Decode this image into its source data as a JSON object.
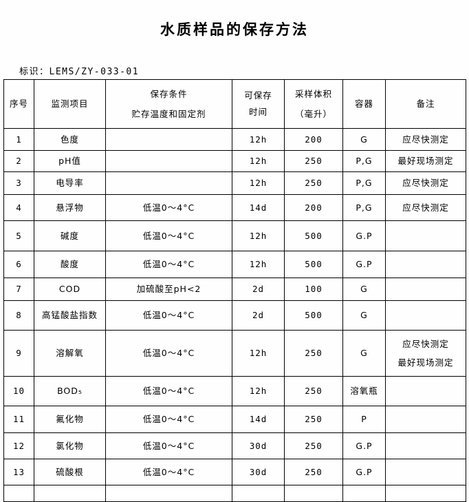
{
  "title": "水质样品的保存方法",
  "doc_id": "标识：LEMS/ZY-033-01",
  "table": {
    "headers": {
      "no": "序号",
      "item": "监测项目",
      "condition_line1": "保存条件",
      "condition_line2": "贮存温度和固定剂",
      "time": "可保存时间",
      "volume_line1": "采样体积",
      "volume_line2": "（毫升）",
      "container": "容器",
      "remark": "备注"
    },
    "rows": [
      {
        "no": "1",
        "item": "色度",
        "condition": "",
        "time": "12h",
        "volume": "200",
        "container": "G",
        "remark": "应尽快测定"
      },
      {
        "no": "2",
        "item": "pH值",
        "condition": "",
        "time": "12h",
        "volume": "250",
        "container": "P,G",
        "remark": "最好现场测定"
      },
      {
        "no": "3",
        "item": "电导率",
        "condition": "",
        "time": "12h",
        "volume": "250",
        "container": "P,G",
        "remark": "应尽快测定"
      },
      {
        "no": "4",
        "item": "悬浮物",
        "condition": "低温0～4°C",
        "time": "14d",
        "volume": "200",
        "container": "P,G",
        "remark": "应尽快测定"
      },
      {
        "no": "5",
        "item": "碱度",
        "condition": "低温0～4°C",
        "time": "12h",
        "volume": "500",
        "container": "G.P",
        "remark": ""
      },
      {
        "no": "6",
        "item": "酸度",
        "condition": "低温0～4°C",
        "time": "12h",
        "volume": "500",
        "container": "G.P",
        "remark": ""
      },
      {
        "no": "7",
        "item": "COD",
        "condition": "加硫酸至pH<2",
        "time": "2d",
        "volume": "100",
        "container": "G",
        "remark": ""
      },
      {
        "no": "8",
        "item": "高锰酸盐指数",
        "condition": "低温0～4°C",
        "time": "2d",
        "volume": "500",
        "container": "G",
        "remark": ""
      },
      {
        "no": "9",
        "item": "溶解氧",
        "condition": "低温0～4°C",
        "time": "12h",
        "volume": "250",
        "container": "G",
        "remark": "应尽快测定\n最好现场测定"
      },
      {
        "no": "10",
        "item": "BOD₅",
        "condition": "低温0～4°C",
        "time": "12h",
        "volume": "250",
        "container": "溶氧瓶",
        "remark": ""
      },
      {
        "no": "11",
        "item": "氟化物",
        "condition": "低温0～4°C",
        "time": "14d",
        "volume": "250",
        "container": "P",
        "remark": ""
      },
      {
        "no": "12",
        "item": "氯化物",
        "condition": "低温0～4°C",
        "time": "30d",
        "volume": "250",
        "container": "G.P",
        "remark": ""
      },
      {
        "no": "13",
        "item": "硫酸根",
        "condition": "低温0～4°C",
        "time": "30d",
        "volume": "250",
        "container": "G.P",
        "remark": ""
      }
    ]
  }
}
